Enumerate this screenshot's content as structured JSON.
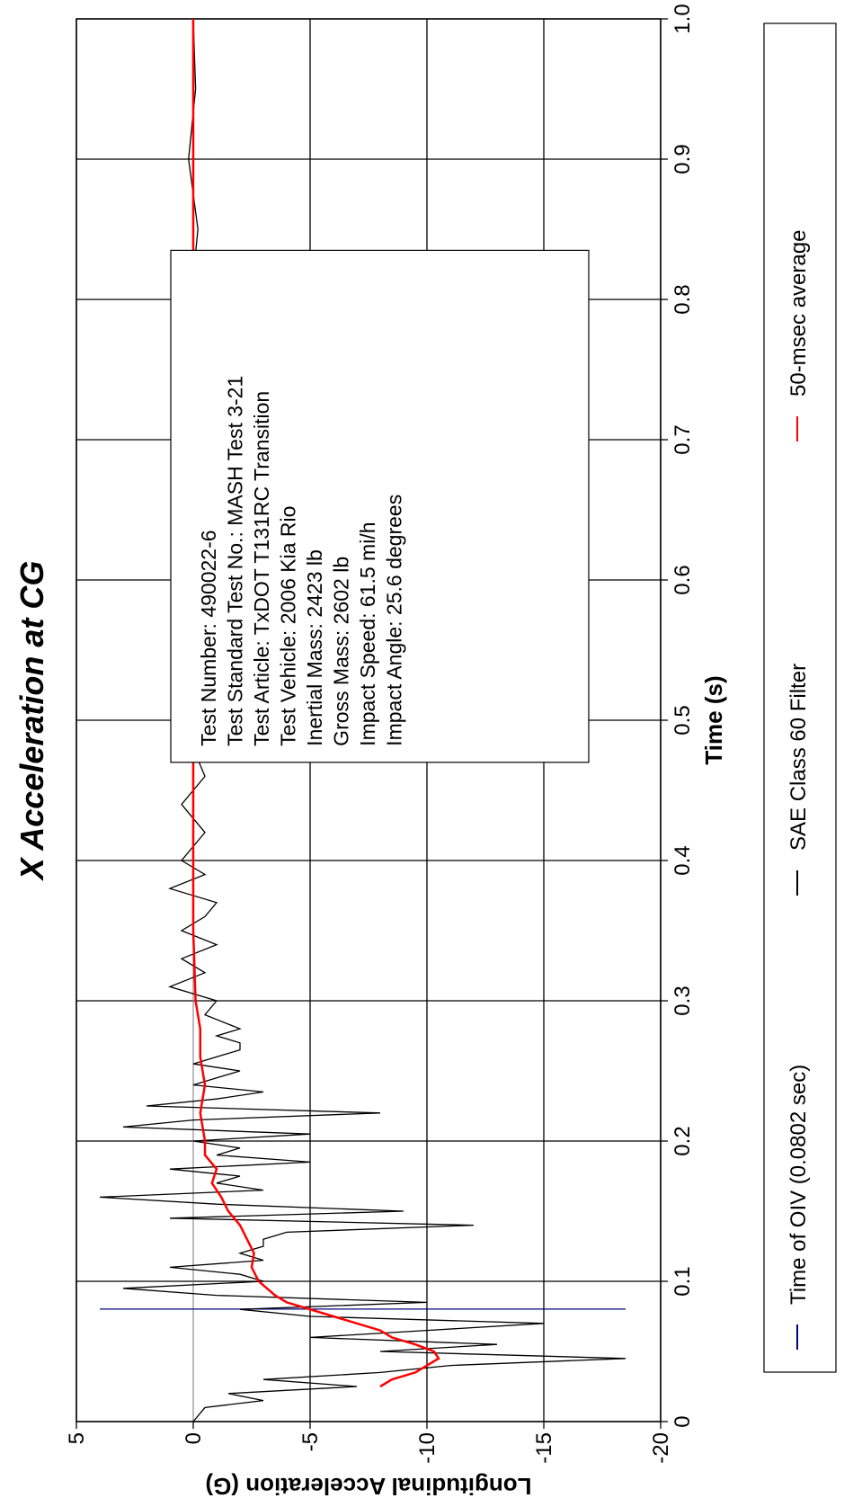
{
  "chart_data": {
    "type": "line",
    "title": "X Acceleration at CG",
    "x_label": "Time (s)",
    "y_label": "Longitudinal Acceleration (G)",
    "xlim": [
      0,
      1
    ],
    "xticks": [
      0,
      0.1,
      0.2,
      0.3,
      0.4,
      0.5,
      0.6,
      0.7,
      0.8,
      0.9,
      {
        "value": 1,
        "label": "1.0"
      }
    ],
    "ylim": [
      -20,
      5
    ],
    "yticks": [
      -20,
      -15,
      -10,
      -5,
      0,
      5
    ],
    "grid": true,
    "legend": "bottom",
    "annotation_lines": [
      "Test Number: 490022-6",
      "Test Standard Test No.: MASH Test 3-21",
      "Test Article: TxDOT T131RC Transition",
      "Test Vehicle: 2006 Kia Rio",
      "Inertial Mass: 2423 lb",
      "Gross Mass: 2602 lb",
      "Impact Speed: 61.5 mi/h",
      "Impact Angle: 25.6 degrees"
    ],
    "series": [
      {
        "name": "Time of OIV (0.0802 sec)",
        "color": "#000080",
        "x": [
          0.0802,
          0.0802
        ],
        "values": [
          4,
          -18.5
        ]
      },
      {
        "name": "SAE Class 60 Filter",
        "color": "#000000",
        "x": [
          0,
          0.01,
          0.015,
          0.02,
          0.025,
          0.03,
          0.035,
          0.04,
          0.045,
          0.05,
          0.055,
          0.06,
          0.065,
          0.07,
          0.075,
          0.08,
          0.085,
          0.09,
          0.095,
          0.1,
          0.105,
          0.11,
          0.115,
          0.12,
          0.125,
          0.13,
          0.135,
          0.14,
          0.145,
          0.15,
          0.155,
          0.16,
          0.165,
          0.17,
          0.175,
          0.18,
          0.185,
          0.19,
          0.195,
          0.2,
          0.205,
          0.21,
          0.215,
          0.22,
          0.225,
          0.23,
          0.235,
          0.24,
          0.245,
          0.25,
          0.255,
          0.26,
          0.265,
          0.27,
          0.275,
          0.28,
          0.29,
          0.3,
          0.31,
          0.32,
          0.33,
          0.34,
          0.35,
          0.36,
          0.37,
          0.38,
          0.39,
          0.4,
          0.42,
          0.44,
          0.46,
          0.48,
          0.5,
          0.52,
          0.54,
          0.56,
          0.58,
          0.6,
          0.62,
          0.64,
          0.7,
          0.75,
          0.8,
          0.85,
          0.9,
          0.95,
          1.0
        ],
        "values": [
          0,
          -0.5,
          -3,
          -1.5,
          -7,
          -3,
          -8,
          -11,
          -18.5,
          -8,
          -13,
          -5,
          -10,
          -15,
          -5,
          -2,
          -10,
          -1,
          3,
          -3,
          -2,
          1,
          -3,
          -2,
          -3,
          -3,
          -4,
          -12,
          1,
          -9,
          -1,
          4,
          -3,
          -1,
          -2,
          1,
          -5,
          -1,
          -2,
          0,
          -5,
          3,
          0,
          -8,
          2,
          -1,
          -3,
          0,
          -1,
          -2,
          0,
          -1,
          -2,
          -2,
          -1,
          -2,
          -0.5,
          -1,
          1,
          -0.5,
          0.5,
          -1,
          0.5,
          -0.5,
          -1,
          1,
          -0.5,
          0.5,
          -0.5,
          0.5,
          -0.5,
          0,
          0.3,
          -0.5,
          0.4,
          -0.4,
          0.4,
          -0.3,
          0.5,
          -0.3,
          0.2,
          -0.2,
          0.1,
          -0.2,
          0.2,
          -0.1,
          0
        ]
      },
      {
        "name": "50-msec average",
        "color": "#ff0000",
        "x": [
          0.025,
          0.03,
          0.035,
          0.04,
          0.045,
          0.05,
          0.055,
          0.06,
          0.065,
          0.07,
          0.075,
          0.08,
          0.085,
          0.09,
          0.1,
          0.11,
          0.12,
          0.13,
          0.14,
          0.15,
          0.16,
          0.17,
          0.18,
          0.19,
          0.2,
          0.22,
          0.24,
          0.26,
          0.28,
          0.3,
          0.35,
          0.4,
          0.5,
          0.6,
          0.7,
          0.8,
          0.9,
          1.0
        ],
        "values": [
          -8,
          -8.5,
          -9.5,
          -10,
          -10.5,
          -10.3,
          -9.5,
          -8.5,
          -8,
          -7,
          -6,
          -5,
          -4,
          -3.5,
          -2.8,
          -2.5,
          -2.6,
          -2.3,
          -2,
          -1.5,
          -1.2,
          -0.8,
          -1,
          -0.5,
          -0.5,
          -0.3,
          -0.5,
          -0.3,
          -0.3,
          -0.1,
          0,
          0,
          0,
          0,
          0,
          0,
          0,
          0
        ]
      }
    ]
  }
}
